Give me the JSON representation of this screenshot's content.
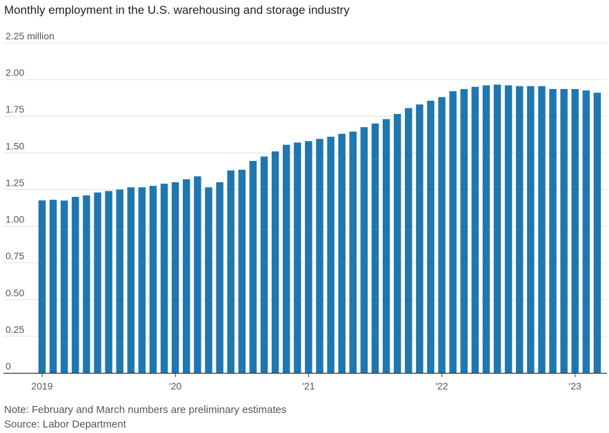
{
  "chart_data": {
    "type": "bar",
    "title": "Monthly employment in the U.S. warehousing and storage industry",
    "ylabel": "",
    "xlabel": "",
    "ylim": [
      0,
      2.25
    ],
    "grid": true,
    "y_ticks": [
      {
        "value": 0,
        "label": "0"
      },
      {
        "value": 0.25,
        "label": "0.25"
      },
      {
        "value": 0.5,
        "label": "0.50"
      },
      {
        "value": 0.75,
        "label": "0.75"
      },
      {
        "value": 1.0,
        "label": "1.00"
      },
      {
        "value": 1.25,
        "label": "1.25"
      },
      {
        "value": 1.5,
        "label": "1.50"
      },
      {
        "value": 1.75,
        "label": "1.75"
      },
      {
        "value": 2.0,
        "label": "2.00"
      },
      {
        "value": 2.25,
        "label": "2.25 million"
      }
    ],
    "x_ticks": [
      {
        "index": 0,
        "label": "2019"
      },
      {
        "index": 12,
        "label": "'20"
      },
      {
        "index": 24,
        "label": "'21"
      },
      {
        "index": 36,
        "label": "'22"
      },
      {
        "index": 48,
        "label": "'23"
      }
    ],
    "categories": [
      "2019-01",
      "2019-02",
      "2019-03",
      "2019-04",
      "2019-05",
      "2019-06",
      "2019-07",
      "2019-08",
      "2019-09",
      "2019-10",
      "2019-11",
      "2019-12",
      "2020-01",
      "2020-02",
      "2020-03",
      "2020-04",
      "2020-05",
      "2020-06",
      "2020-07",
      "2020-08",
      "2020-09",
      "2020-10",
      "2020-11",
      "2020-12",
      "2021-01",
      "2021-02",
      "2021-03",
      "2021-04",
      "2021-05",
      "2021-06",
      "2021-07",
      "2021-08",
      "2021-09",
      "2021-10",
      "2021-11",
      "2021-12",
      "2022-01",
      "2022-02",
      "2022-03",
      "2022-04",
      "2022-05",
      "2022-06",
      "2022-07",
      "2022-08",
      "2022-09",
      "2022-10",
      "2022-11",
      "2022-12",
      "2023-01",
      "2023-02",
      "2023-03"
    ],
    "values": [
      1.176,
      1.18,
      1.175,
      1.2,
      1.21,
      1.23,
      1.24,
      1.25,
      1.265,
      1.265,
      1.275,
      1.29,
      1.3,
      1.32,
      1.34,
      1.265,
      1.3,
      1.38,
      1.385,
      1.445,
      1.475,
      1.51,
      1.555,
      1.57,
      1.58,
      1.595,
      1.61,
      1.63,
      1.645,
      1.675,
      1.7,
      1.73,
      1.765,
      1.805,
      1.83,
      1.855,
      1.88,
      1.92,
      1.935,
      1.95,
      1.96,
      1.965,
      1.96,
      1.955,
      1.955,
      1.955,
      1.935,
      1.935,
      1.935,
      1.925,
      1.91
    ],
    "bar_color": "#1f77b0",
    "note": "Note: February and March numbers are preliminary estimates",
    "source": "Source: Labor Department"
  }
}
